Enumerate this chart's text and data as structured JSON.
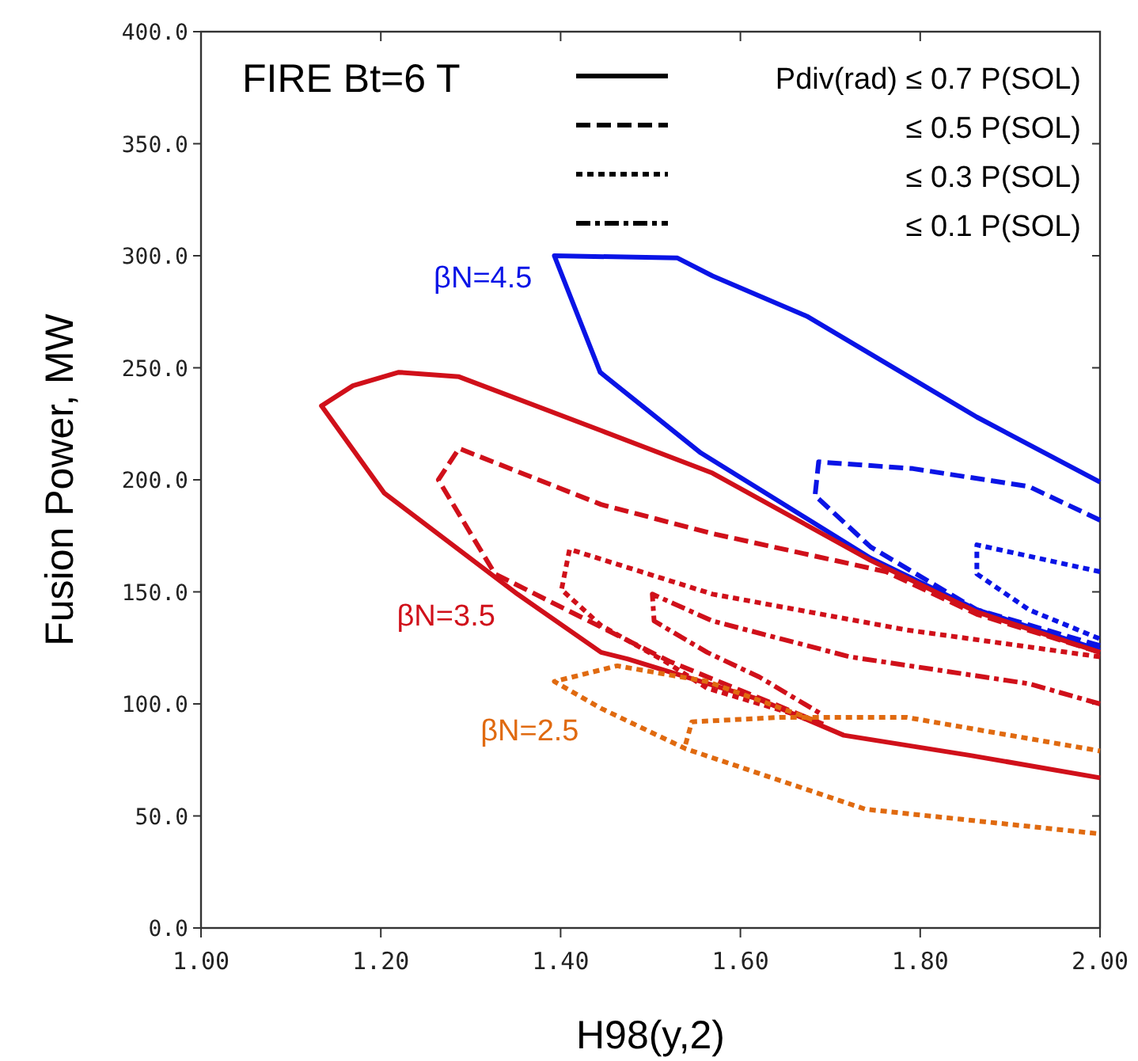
{
  "chart_data": {
    "type": "line",
    "title": "FIRE Bt=6 T",
    "xlabel": "H98(y,2)",
    "ylabel": "Fusion Power, MW",
    "xlim": [
      1,
      2
    ],
    "ylim": [
      0,
      400
    ],
    "xticks": [
      {
        "value": 1,
        "label": "1.00"
      },
      {
        "value": 1.2,
        "label": "1.20"
      },
      {
        "value": 1.4,
        "label": "1.40"
      },
      {
        "value": 1.6,
        "label": "1.60"
      },
      {
        "value": 1.8,
        "label": "1.80"
      },
      {
        "value": 2,
        "label": "2.00"
      }
    ],
    "yticks": [
      {
        "value": 0,
        "label": "0.0"
      },
      {
        "value": 50,
        "label": "50.0"
      },
      {
        "value": 100,
        "label": "100.0"
      },
      {
        "value": 150,
        "label": "150.0"
      },
      {
        "value": 200,
        "label": "200.0"
      },
      {
        "value": 250,
        "label": "250.0"
      },
      {
        "value": 300,
        "label": "300.0"
      },
      {
        "value": 350,
        "label": "350.0"
      },
      {
        "value": 400,
        "label": "400.0"
      }
    ],
    "grid": false,
    "series": [
      {
        "color": "#0a14e6",
        "line_style": "solid",
        "x": [
          2.0,
          1.863,
          1.674,
          1.569,
          1.53,
          1.393,
          1.444,
          1.556,
          1.745,
          1.863,
          2.0
        ],
        "values": [
          199,
          228,
          273,
          291,
          299,
          300,
          248,
          212,
          165,
          142,
          124
        ]
      },
      {
        "color": "#0a14e6",
        "line_style": "dashed",
        "x": [
          2.0,
          1.921,
          1.792,
          1.687,
          1.683,
          1.745,
          1.863,
          2.0
        ],
        "values": [
          182,
          197,
          205,
          208,
          193,
          170,
          142,
          126
        ]
      },
      {
        "color": "#0a14e6",
        "line_style": "dotted",
        "x": [
          2.0,
          1.863,
          1.863,
          1.921,
          2.0
        ],
        "values": [
          159,
          171,
          158,
          142,
          129
        ]
      },
      {
        "color": "#d0101a",
        "line_style": "solid",
        "x": [
          2.0,
          1.863,
          1.745,
          1.569,
          1.445,
          1.287,
          1.22,
          1.169,
          1.134,
          1.204,
          1.352,
          1.445,
          1.475,
          1.621,
          1.715,
          1.856,
          2.0
        ],
        "values": [
          123,
          141,
          164,
          203,
          222,
          246,
          248,
          242,
          233,
          194,
          149,
          123,
          120,
          102,
          86,
          77,
          67
        ]
      },
      {
        "color": "#d0101a",
        "line_style": "dashed",
        "x": [
          2.0,
          1.863,
          1.762,
          1.569,
          1.445,
          1.287,
          1.264,
          1.327,
          1.521,
          1.692
        ],
        "values": [
          123,
          140,
          159,
          176,
          189,
          214,
          200,
          158,
          119,
          91
        ]
      },
      {
        "color": "#d0101a",
        "line_style": "dotted",
        "x": [
          2.0,
          1.785,
          1.569,
          1.41,
          1.401,
          1.445,
          1.516,
          1.563,
          1.68
        ],
        "values": [
          121,
          133,
          149,
          169,
          151,
          135,
          119,
          107,
          93
        ]
      },
      {
        "color": "#d0101a",
        "line_style": "dashdot",
        "x": [
          2.0,
          1.921,
          1.722,
          1.569,
          1.502,
          1.504,
          1.563,
          1.621,
          1.692
        ],
        "values": [
          100,
          109,
          121,
          137,
          149,
          137,
          123,
          112,
          95
        ]
      },
      {
        "color": "#e06a10",
        "line_style": "dotted",
        "x": [
          1.68,
          1.563,
          1.463,
          1.393,
          1.445,
          1.539,
          1.739,
          2.0
        ],
        "values": [
          93,
          110,
          117,
          110,
          98,
          80,
          53,
          42
        ]
      },
      {
        "color": "#e06a10",
        "line_style": "dotted",
        "x": [
          1.539,
          1.546,
          1.644,
          1.785,
          2.0
        ],
        "values": [
          82,
          92,
          94,
          94,
          79
        ]
      }
    ],
    "annotations": [
      "Pdiv(rad) ≤ 0.7 P(SOL)",
      "≤ 0.5 P(SOL)",
      "≤ 0.3 P(SOL)",
      "≤ 0.1 P(SOL)",
      {
        "text": "βN=4.5",
        "x": 1.393,
        "y": 300
      },
      {
        "text": "βN=3.5",
        "x": 1.352,
        "y": 149
      },
      {
        "text": "βN=2.5",
        "x": 1.445,
        "y": 98
      }
    ]
  }
}
